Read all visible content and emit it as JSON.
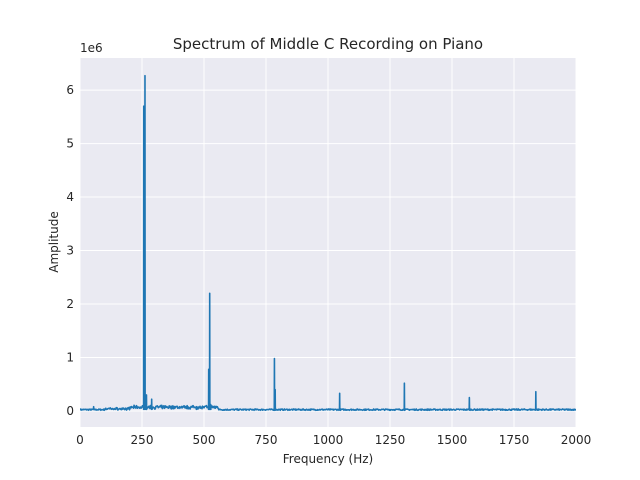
{
  "chart_data": {
    "type": "line",
    "title": "Spectrum of Middle C Recording on Piano",
    "xlabel": "Frequency (Hz)",
    "ylabel": "Amplitude",
    "offset_text": "1e6",
    "xlim": [
      0,
      2000
    ],
    "ylim": [
      -0.3,
      6.6
    ],
    "x_ticks": [
      0,
      250,
      500,
      750,
      1000,
      1250,
      1500,
      1750,
      2000
    ],
    "x_tick_labels": [
      "0",
      "250",
      "500",
      "750",
      "1000",
      "1250",
      "1500",
      "1750",
      "2000"
    ],
    "y_ticks": [
      0,
      1,
      2,
      3,
      4,
      5,
      6
    ],
    "y_tick_labels": [
      "0",
      "1",
      "2",
      "3",
      "4",
      "5",
      "6"
    ],
    "grid": true,
    "style": {
      "line_color": "#1f77b4",
      "axes_bg": "#eaeaf2",
      "grid_color": "#ffffff"
    },
    "peaks": [
      {
        "x": 55,
        "y": 0.08
      },
      {
        "x": 257,
        "y": 5.7
      },
      {
        "x": 262,
        "y": 6.27
      },
      {
        "x": 268,
        "y": 0.3
      },
      {
        "x": 289,
        "y": 0.22
      },
      {
        "x": 470,
        "y": 0.08
      },
      {
        "x": 519,
        "y": 0.78
      },
      {
        "x": 523,
        "y": 2.2
      },
      {
        "x": 527,
        "y": 0.12
      },
      {
        "x": 784,
        "y": 0.98
      },
      {
        "x": 787,
        "y": 0.4
      },
      {
        "x": 1047,
        "y": 0.33
      },
      {
        "x": 1308,
        "y": 0.52
      },
      {
        "x": 1570,
        "y": 0.25
      },
      {
        "x": 1838,
        "y": 0.36
      }
    ]
  }
}
